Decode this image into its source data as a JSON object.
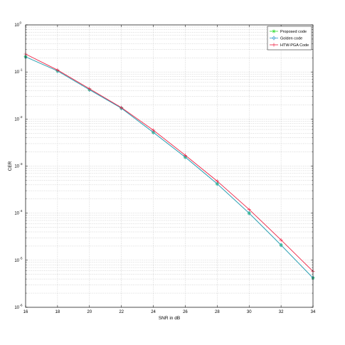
{
  "chart_data": {
    "type": "line",
    "title": "",
    "xlabel": "SNR in dB",
    "ylabel": "CER",
    "xlim": [
      16,
      34
    ],
    "ylim_exponents": [
      -6,
      0
    ],
    "y_scale": "log",
    "grid": true,
    "legend_placement": "top-right",
    "x_ticks": [
      "16",
      "18",
      "20",
      "22",
      "24",
      "26",
      "28",
      "30",
      "32",
      "34"
    ],
    "y_ticks": [
      {
        "base": "10",
        "exp": "0"
      },
      {
        "base": "10",
        "exp": "-1"
      },
      {
        "base": "10",
        "exp": "-2"
      },
      {
        "base": "10",
        "exp": "-3"
      },
      {
        "base": "10",
        "exp": "-4"
      },
      {
        "base": "10",
        "exp": "-5"
      },
      {
        "base": "10",
        "exp": "-6"
      }
    ],
    "x": [
      16,
      18,
      20,
      22,
      24,
      26,
      28,
      30,
      32,
      34
    ],
    "series": [
      {
        "name": "Proposed code",
        "color": "#33dd33",
        "marker": "star",
        "values": [
          0.21,
          0.105,
          0.042,
          0.017,
          0.0052,
          0.00155,
          0.00042,
          0.0001,
          2.1e-05,
          4.2e-06
        ]
      },
      {
        "name": "Golden code",
        "color": "#3399cc",
        "marker": "diamond",
        "values": [
          0.21,
          0.105,
          0.042,
          0.017,
          0.0052,
          0.00155,
          0.00042,
          0.0001,
          2.1e-05,
          4.2e-06
        ]
      },
      {
        "name": "HTW-PGA Code",
        "color": "#ee2244",
        "marker": "plus",
        "values": [
          0.24,
          0.11,
          0.044,
          0.0175,
          0.0058,
          0.0017,
          0.00048,
          0.00012,
          2.7e-05,
          5.8e-06
        ]
      }
    ]
  }
}
